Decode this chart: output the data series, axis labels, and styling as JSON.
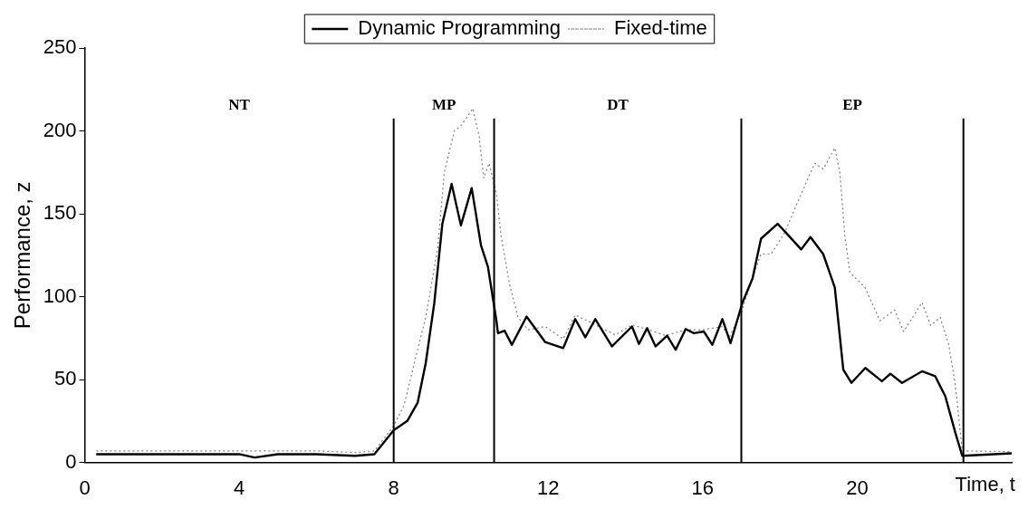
{
  "chart_data": {
    "type": "line",
    "xlabel": "Time, t",
    "ylabel": "Performance, z",
    "xlim": [
      0,
      24
    ],
    "xticks": [
      0,
      4,
      8,
      12,
      16,
      20
    ],
    "ylim": [
      0,
      250
    ],
    "yticks": [
      0,
      50,
      100,
      150,
      200,
      250
    ],
    "grid": false,
    "legend": "top",
    "marker": "none",
    "series": [
      {
        "name": "Dynamic Programming",
        "color": "#000000",
        "line_style": "solid",
        "x": [
          0.3,
          1.0,
          2.0,
          3.0,
          4.0,
          4.4,
          5.0,
          6.0,
          7.0,
          7.5,
          8.0,
          8.35,
          8.62,
          8.83,
          9.05,
          9.26,
          9.5,
          9.74,
          10.02,
          10.26,
          10.44,
          10.66,
          10.7,
          10.87,
          11.06,
          11.44,
          11.92,
          12.39,
          12.7,
          12.96,
          13.22,
          13.65,
          14.17,
          14.35,
          14.56,
          14.78,
          15.08,
          15.3,
          15.56,
          15.77,
          16.03,
          16.25,
          16.51,
          16.72,
          17.03,
          17.29,
          17.51,
          17.94,
          18.16,
          18.55,
          18.79,
          19.12,
          19.42,
          19.64,
          19.85,
          20.21,
          20.64,
          20.86,
          21.16,
          21.68,
          22.02,
          22.28,
          22.54,
          22.72,
          24.0
        ],
        "values": [
          5,
          5,
          5,
          5,
          5,
          3,
          5,
          5,
          4,
          5,
          19.5,
          25,
          36,
          60,
          96,
          144,
          168,
          143,
          165.5,
          131,
          118,
          85.5,
          78,
          79.5,
          71,
          88,
          72.7,
          69,
          86.5,
          75.5,
          86.5,
          70,
          82,
          71.5,
          81,
          70,
          76.5,
          68,
          80.5,
          78,
          79,
          71,
          86.5,
          72,
          96.5,
          111,
          135,
          144,
          138.5,
          128.5,
          136,
          125.7,
          105.6,
          56,
          48,
          57,
          49,
          53.5,
          48,
          55,
          52,
          40,
          18,
          4,
          5.5
        ]
      },
      {
        "name": "Fixed-time",
        "color": "#808080",
        "line_style": "dotted",
        "x": [
          0.3,
          1.0,
          2.0,
          3.0,
          4.0,
          5.0,
          6.0,
          7.0,
          7.5,
          8.0,
          8.27,
          8.57,
          8.83,
          9.14,
          9.31,
          9.57,
          9.74,
          10.05,
          10.21,
          10.33,
          10.47,
          10.66,
          10.78,
          11.0,
          11.22,
          11.48,
          11.92,
          12.39,
          12.7,
          13.22,
          13.74,
          14.17,
          14.61,
          15.04,
          15.56,
          16.0,
          16.5,
          16.7,
          17.0,
          17.29,
          17.51,
          17.77,
          18.12,
          18.42,
          18.9,
          19.12,
          19.42,
          19.55,
          19.68,
          19.81,
          20.2,
          20.59,
          20.97,
          21.2,
          21.68,
          21.9,
          22.15,
          22.37,
          22.54,
          22.72,
          24.0
        ],
        "values": [
          7,
          7,
          7,
          7,
          7,
          7,
          7,
          6,
          7,
          22,
          34.5,
          63.5,
          87.5,
          129.5,
          175,
          200,
          203,
          213.5,
          197,
          171.5,
          180.5,
          162,
          136.7,
          107.5,
          87.5,
          80,
          82,
          74.5,
          89,
          83,
          77,
          83,
          80,
          76.5,
          80,
          80,
          82,
          76,
          91,
          111,
          125.7,
          125.7,
          138.5,
          155,
          180.5,
          177,
          189.7,
          175,
          136.7,
          114.7,
          105.6,
          85.5,
          92,
          79,
          96.5,
          82.7,
          87.5,
          71,
          47,
          7,
          6.5
        ]
      }
    ],
    "ref_lines": [
      {
        "axis": "x",
        "value": 8,
        "color": "#000000"
      },
      {
        "axis": "x",
        "value": 10.6,
        "color": "#000000"
      },
      {
        "axis": "x",
        "value": 17,
        "color": "#000000"
      },
      {
        "axis": "x",
        "value": 22.75,
        "color": "#000000"
      }
    ],
    "annotations": [
      "NT",
      "MP",
      "DT",
      "EP"
    ]
  }
}
